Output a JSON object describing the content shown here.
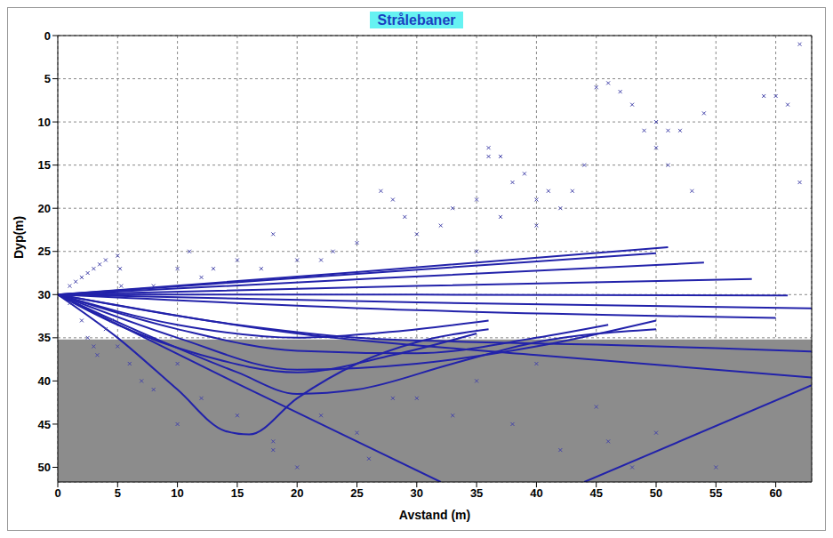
{
  "chart_data": {
    "type": "line",
    "title": "Strålebaner",
    "x_label": "Avstand (m)",
    "y_label": "Dyp(m)",
    "xlim": [
      0,
      63
    ],
    "xticks": [
      0,
      5,
      10,
      15,
      20,
      25,
      30,
      35,
      40,
      45,
      50,
      55,
      60
    ],
    "ylim": [
      0,
      51.7
    ],
    "yticks": [
      0,
      5,
      10,
      15,
      20,
      25,
      30,
      35,
      40,
      45,
      50
    ],
    "y_inverted": true,
    "grid": true,
    "shaded_region": {
      "y": [
        35.2,
        51.7
      ],
      "color": "#8c8c8c"
    },
    "series": [
      {
        "color": "#2222aa",
        "x": [
          0,
          25,
          51
        ],
        "values": [
          30,
          27.4,
          24.5
        ]
      },
      {
        "color": "#2222aa",
        "x": [
          0,
          27,
          54
        ],
        "values": [
          30,
          28.1,
          26.3
        ]
      },
      {
        "color": "#2222aa",
        "x": [
          0,
          25,
          50
        ],
        "values": [
          30,
          27.6,
          25.2
        ]
      },
      {
        "color": "#2222aa",
        "x": [
          0,
          30,
          58
        ],
        "values": [
          30,
          29.0,
          28.2
        ]
      },
      {
        "color": "#2222aa",
        "x": [
          0,
          30,
          61
        ],
        "values": [
          30,
          30.0,
          30.1
        ]
      },
      {
        "color": "#2222aa",
        "x": [
          0,
          30,
          63
        ],
        "values": [
          30,
          30.9,
          31.6
        ]
      },
      {
        "color": "#2222aa",
        "x": [
          0,
          30,
          60
        ],
        "values": [
          30,
          31.8,
          32.7
        ]
      },
      {
        "color": "#2222aa",
        "x": [
          0,
          10,
          20,
          28,
          36
        ],
        "values": [
          30,
          33.5,
          35.0,
          34.3,
          33.0
        ]
      },
      {
        "color": "#2222aa",
        "x": [
          0,
          5,
          12,
          20,
          28,
          35
        ],
        "values": [
          30,
          33.5,
          37.0,
          39.0,
          37.0,
          34.5
        ]
      },
      {
        "color": "#2222aa",
        "x": [
          0,
          5,
          10,
          14,
          16,
          20,
          25,
          30,
          36
        ],
        "values": [
          30,
          35.0,
          41.0,
          45.8,
          46.2,
          42.0,
          38.0,
          35.5,
          34.0
        ]
      },
      {
        "color": "#2222aa",
        "x": [
          0,
          8,
          15,
          20,
          25,
          33,
          40,
          50
        ],
        "values": [
          30,
          35.0,
          39.0,
          41.5,
          41.0,
          38.0,
          35.5,
          34.0
        ]
      },
      {
        "color": "#2222aa",
        "x": [
          0,
          10,
          20,
          30,
          40,
          50
        ],
        "values": [
          30,
          35.0,
          38.7,
          38.0,
          36.0,
          33.0
        ]
      },
      {
        "color": "#2222aa",
        "x": [
          0,
          10,
          20,
          30,
          40,
          46
        ],
        "values": [
          30,
          34.0,
          36.5,
          36.8,
          35.0,
          33.5
        ]
      },
      {
        "color": "#2222aa",
        "x": [
          0,
          15,
          25,
          35,
          45,
          55,
          63
        ],
        "values": [
          30,
          33.5,
          35.0,
          35.5,
          35.8,
          36.2,
          36.6
        ]
      },
      {
        "color": "#2222aa",
        "x": [
          0,
          20,
          40,
          63
        ],
        "values": [
          30,
          34.5,
          37.0,
          39.6
        ]
      },
      {
        "color": "#2222aa",
        "x": [
          0,
          15,
          32
        ],
        "values": [
          30,
          40.3,
          51.7
        ]
      },
      {
        "color": "#2222aa",
        "x": [
          44,
          63
        ],
        "values": [
          51.7,
          40.5
        ]
      }
    ],
    "scatter_points": {
      "marker": "x",
      "color": "#4444aa",
      "x": [
        27,
        28,
        29,
        30,
        32,
        33,
        35,
        36,
        36,
        37,
        38,
        39,
        40,
        41,
        42,
        43,
        45,
        46,
        47,
        48,
        49,
        50,
        50,
        51,
        51,
        52,
        53,
        54,
        59,
        60,
        61,
        62,
        62,
        25,
        23,
        22,
        20,
        18,
        17,
        15,
        13,
        11,
        10,
        8,
        12,
        35,
        37,
        40,
        44,
        5,
        6,
        7,
        8,
        10,
        12,
        15,
        18,
        20,
        22,
        25,
        28,
        30,
        33,
        35,
        38,
        40,
        42,
        45,
        48,
        50,
        46,
        55,
        18,
        26,
        10,
        1,
        1.5,
        2,
        2.5,
        3,
        3.5,
        4,
        5,
        5.2,
        5.3,
        1,
        2,
        2.5,
        3,
        3.3,
        4,
        4.5
      ],
      "y": [
        18,
        19,
        21,
        23,
        22,
        20,
        19,
        13,
        14,
        14,
        17,
        16,
        19,
        18,
        20,
        18,
        6,
        5.5,
        6.5,
        8,
        11,
        13,
        10,
        15,
        11,
        11,
        18,
        9,
        7,
        7,
        8,
        1,
        17,
        24,
        25,
        26,
        26,
        23,
        27,
        26,
        27,
        25,
        27,
        29,
        28,
        25,
        21,
        22,
        15,
        36,
        38,
        40,
        41,
        38,
        42,
        44,
        47,
        50,
        44,
        46,
        42,
        42,
        44,
        40,
        45,
        38,
        48,
        43,
        50,
        46,
        47,
        50,
        48,
        49,
        45,
        29,
        28.5,
        28,
        27.5,
        27,
        26.5,
        26,
        25.5,
        27,
        29,
        31,
        33,
        35,
        36,
        37,
        34,
        33
      ]
    }
  }
}
